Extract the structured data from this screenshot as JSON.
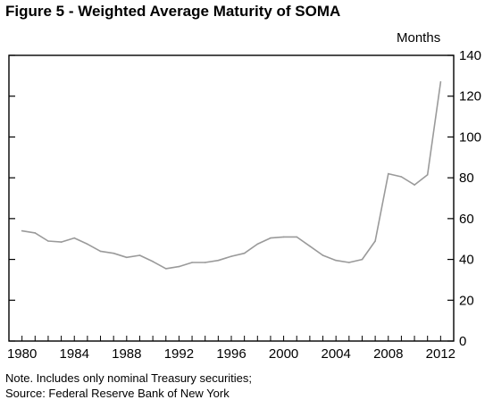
{
  "header": {
    "title": "Figure 5 - Weighted Average Maturity of SOMA",
    "units": "Months"
  },
  "footer": {
    "note": "Note. Includes only nominal Treasury securities;",
    "source": "Source: Federal Reserve Bank of New York"
  },
  "chart_data": {
    "type": "line",
    "title": "Figure 5 - Weighted Average Maturity of SOMA",
    "xlabel": "",
    "ylabel": "Months",
    "ylim": [
      0,
      140
    ],
    "xlim": [
      1979,
      2013
    ],
    "yticks": [
      0,
      20,
      40,
      60,
      80,
      100,
      120,
      140
    ],
    "xticks": [
      1980,
      1984,
      1988,
      1992,
      1996,
      2000,
      2004,
      2008,
      2012
    ],
    "y_axis_position": "right",
    "grid": false,
    "legend": "none",
    "line_color": "#9a9a9a",
    "series": [
      {
        "x": [
          1980,
          1981,
          1982,
          1983,
          1984,
          1985,
          1986,
          1987,
          1988,
          1989,
          1990,
          1991,
          1992,
          1993,
          1994,
          1995,
          1996,
          1997,
          1998,
          1999,
          2000,
          2001,
          2002,
          2003,
          2004,
          2005,
          2006,
          2007,
          2008,
          2009,
          2010,
          2011,
          2012
        ],
        "values": [
          54,
          53,
          49,
          48.5,
          50.5,
          47.5,
          44,
          43,
          41,
          42,
          39,
          35.5,
          36.5,
          38.5,
          38.5,
          39.5,
          41.5,
          43,
          47.5,
          50.5,
          51,
          51,
          46.5,
          42,
          39.5,
          38.5,
          40,
          49,
          82,
          80.5,
          76.5,
          81.5,
          127
        ]
      }
    ]
  }
}
